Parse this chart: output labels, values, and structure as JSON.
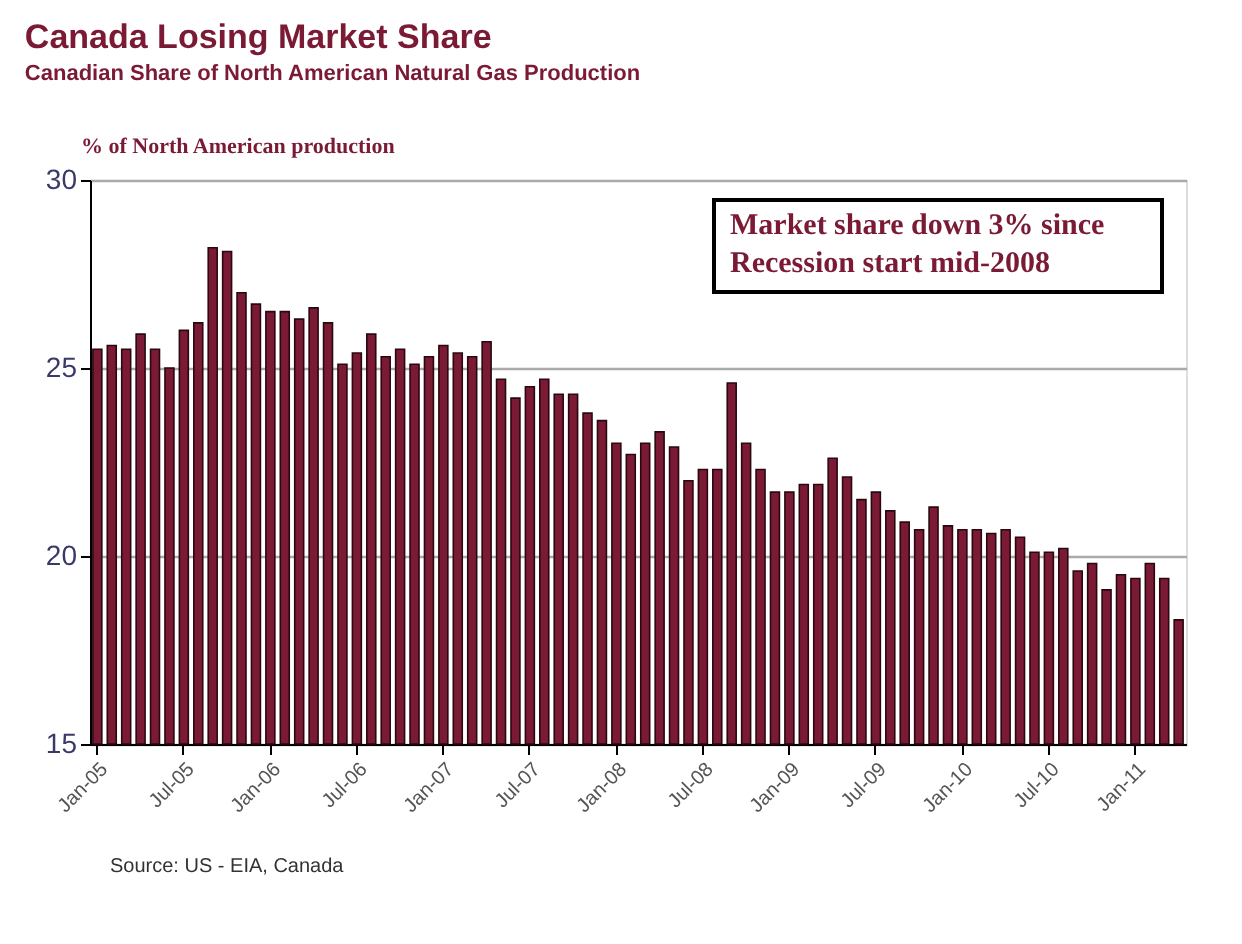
{
  "chart_data": {
    "type": "bar",
    "title": "Canada Losing Market Share",
    "subtitle": "Canadian Share of North American  Natural Gas Production",
    "ylabel": "% of North American production",
    "categories": [
      "Jan-05",
      null,
      null,
      null,
      null,
      null,
      "Jul-05",
      null,
      null,
      null,
      null,
      null,
      "Jan-06",
      null,
      null,
      null,
      null,
      null,
      "Jul-06",
      null,
      null,
      null,
      null,
      null,
      "Jan-07",
      null,
      null,
      null,
      null,
      null,
      "Jul-07",
      null,
      null,
      null,
      null,
      null,
      "Jan-08",
      null,
      null,
      null,
      null,
      null,
      "Jul-08",
      null,
      null,
      null,
      null,
      null,
      "Jan-09",
      null,
      null,
      null,
      null,
      null,
      "Jul-09",
      null,
      null,
      null,
      null,
      null,
      "Jan-10",
      null,
      null,
      null,
      null,
      null,
      "Jul-10",
      null,
      null,
      null,
      null,
      null,
      "Jan-11",
      null,
      null,
      null
    ],
    "values": [
      25.5,
      25.6,
      25.5,
      25.9,
      25.5,
      25.0,
      26.0,
      26.2,
      28.2,
      28.1,
      27.0,
      26.7,
      26.5,
      26.5,
      26.3,
      26.6,
      26.2,
      25.1,
      25.4,
      25.9,
      25.3,
      25.5,
      25.1,
      25.3,
      25.6,
      25.4,
      25.3,
      25.7,
      24.7,
      24.2,
      24.5,
      24.7,
      24.3,
      24.3,
      23.8,
      23.6,
      23.0,
      22.7,
      23.0,
      23.3,
      22.9,
      22.0,
      22.3,
      22.3,
      24.6,
      23.0,
      22.3,
      21.7,
      21.7,
      21.9,
      21.9,
      22.6,
      22.1,
      21.5,
      21.7,
      21.2,
      20.9,
      20.7,
      21.3,
      20.8,
      20.7,
      20.7,
      20.6,
      20.7,
      20.5,
      20.1,
      20.1,
      20.2,
      19.6,
      19.8,
      19.1,
      19.5,
      19.4,
      19.8,
      19.4,
      18.3
    ],
    "color": "#7b1a35",
    "ylim": [
      15,
      30
    ],
    "yticks": [
      15,
      20,
      25,
      30
    ],
    "grid": "y",
    "annotations": [
      "Market share down 3% since\n   Recession start mid-2008",
      "Source: US - EIA, Canada"
    ]
  }
}
